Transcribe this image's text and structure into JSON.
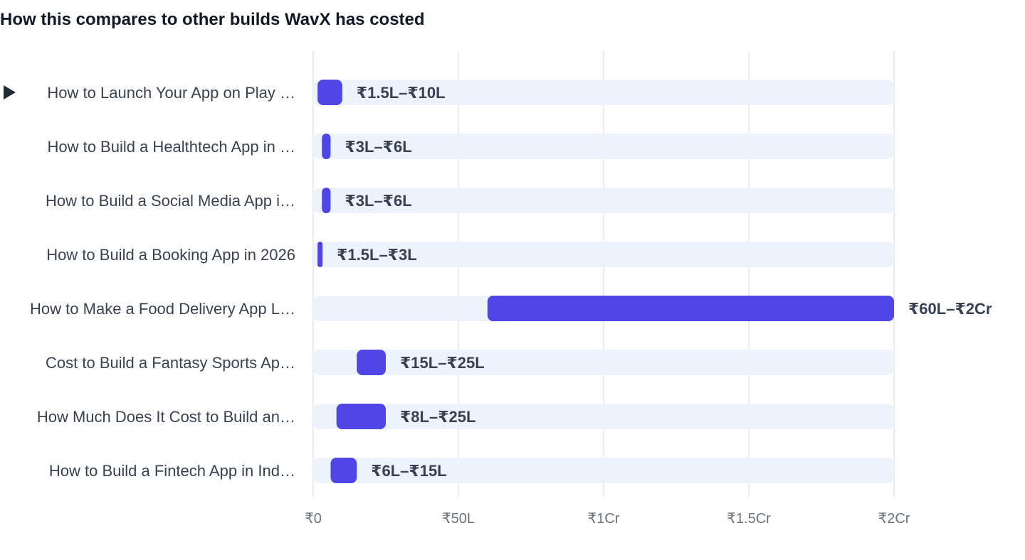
{
  "chart_data": {
    "type": "bar",
    "subtype": "floating-range-horizontal",
    "title": "How this compares to other builds WavX has costed",
    "xlabel": "",
    "ylabel": "",
    "xlim_lakh": [
      0,
      200
    ],
    "x_ticks": [
      {
        "value": 0,
        "label": "₹0"
      },
      {
        "value": 50,
        "label": "₹50L"
      },
      {
        "value": 100,
        "label": "₹1Cr"
      },
      {
        "value": 150,
        "label": "₹1.5Cr"
      },
      {
        "value": 200,
        "label": "₹2Cr"
      }
    ],
    "grid": true,
    "legend": "none",
    "colors": {
      "bar": "#4f46e5",
      "track": "#eef2fc",
      "grid": "#e5e7eb",
      "label": "#374151",
      "value_label": "#374151",
      "tick": "#6b7280",
      "marker": "#1f2937"
    },
    "rows": [
      {
        "label": "How to Launch Your App on Play …",
        "low": 1.5,
        "high": 10,
        "range_label": "₹1.5L–₹10L",
        "current": true
      },
      {
        "label": "How to Build a Healthtech App in …",
        "low": 3,
        "high": 6,
        "range_label": "₹3L–₹6L",
        "current": false
      },
      {
        "label": "How to Build a Social Media App i…",
        "low": 3,
        "high": 6,
        "range_label": "₹3L–₹6L",
        "current": false
      },
      {
        "label": "How to Build a Booking App in 2026",
        "low": 1.5,
        "high": 3,
        "range_label": "₹1.5L–₹3L",
        "current": false
      },
      {
        "label": "How to Make a Food Delivery App L…",
        "low": 60,
        "high": 200,
        "range_label": "₹60L–₹2Cr",
        "current": false
      },
      {
        "label": "Cost to Build a Fantasy Sports Ap…",
        "low": 15,
        "high": 25,
        "range_label": "₹15L–₹25L",
        "current": false
      },
      {
        "label": "How Much Does It Cost to Build an…",
        "low": 8,
        "high": 25,
        "range_label": "₹8L–₹25L",
        "current": false
      },
      {
        "label": "How to Build a Fintech App in Ind…",
        "low": 6,
        "high": 15,
        "range_label": "₹6L–₹15L",
        "current": false
      }
    ]
  }
}
